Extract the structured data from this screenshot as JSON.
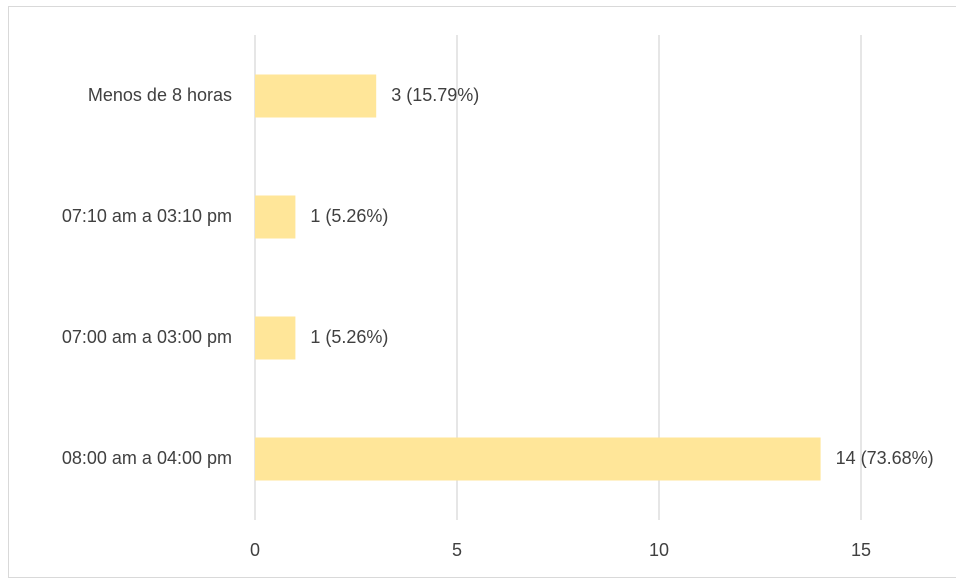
{
  "chart_data": {
    "type": "hbar",
    "categories": [
      "Menos de 8 horas",
      "07:10 am a 03:10 pm",
      "07:00 am a 03:00 pm",
      "08:00 am a 04:00 pm"
    ],
    "values": [
      3,
      1,
      1,
      14
    ],
    "value_labels": [
      "3 (15.79%)",
      "1 (5.26%)",
      "1 (5.26%)",
      "14 (73.68%)"
    ],
    "color": "#ffe699",
    "xlim": [
      0,
      15
    ],
    "xticks": [
      0,
      5,
      10,
      15
    ],
    "grid": true
  }
}
